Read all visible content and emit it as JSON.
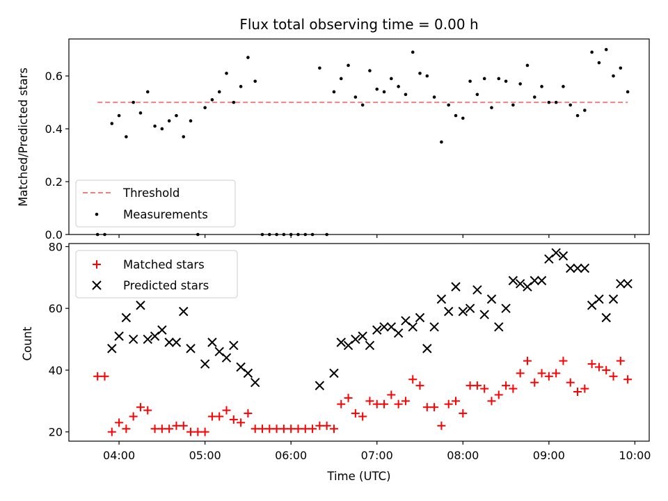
{
  "chart_data": [
    {
      "type": "scatter",
      "title": "Flux total observing time = 0.00 h",
      "xlabel": "",
      "ylabel": "Matched/Predicted stars",
      "xlim": [
        "03:25",
        "10:10"
      ],
      "ylim": [
        0,
        0.74
      ],
      "yticks": [
        "0.0",
        "0.2",
        "0.4",
        "0.6"
      ],
      "grid": false,
      "legend": {
        "placement": "lower-left",
        "entries": [
          "Threshold",
          "Measurements"
        ]
      },
      "threshold": {
        "name": "Threshold",
        "value": 0.5,
        "x_range": [
          "03:45",
          "09:55"
        ],
        "color": "#f08080",
        "style": "dashed"
      },
      "series": [
        {
          "name": "Measurements",
          "marker": "dot",
          "color": "#000000",
          "points": [
            [
              "03:45",
              0.0
            ],
            [
              "03:50",
              0.0
            ],
            [
              "03:55",
              0.42
            ],
            [
              "04:00",
              0.45
            ],
            [
              "04:05",
              0.37
            ],
            [
              "04:10",
              0.5
            ],
            [
              "04:15",
              0.46
            ],
            [
              "04:20",
              0.54
            ],
            [
              "04:25",
              0.41
            ],
            [
              "04:30",
              0.4
            ],
            [
              "04:35",
              0.43
            ],
            [
              "04:40",
              0.45
            ],
            [
              "04:45",
              0.37
            ],
            [
              "04:50",
              0.43
            ],
            [
              "04:55",
              0.0
            ],
            [
              "05:00",
              0.48
            ],
            [
              "05:05",
              0.51
            ],
            [
              "05:10",
              0.54
            ],
            [
              "05:15",
              0.61
            ],
            [
              "05:20",
              0.5
            ],
            [
              "05:25",
              0.56
            ],
            [
              "05:30",
              0.67
            ],
            [
              "05:35",
              0.58
            ],
            [
              "05:40",
              0.0
            ],
            [
              "05:45",
              0.0
            ],
            [
              "05:50",
              0.0
            ],
            [
              "05:55",
              0.0
            ],
            [
              "06:00",
              0.0
            ],
            [
              "06:05",
              0.0
            ],
            [
              "06:10",
              0.0
            ],
            [
              "06:15",
              0.0
            ],
            [
              "06:20",
              0.63
            ],
            [
              "06:25",
              0.0
            ],
            [
              "06:30",
              0.54
            ],
            [
              "06:35",
              0.59
            ],
            [
              "06:40",
              0.64
            ],
            [
              "06:45",
              0.52
            ],
            [
              "06:50",
              0.49
            ],
            [
              "06:55",
              0.62
            ],
            [
              "07:00",
              0.55
            ],
            [
              "07:05",
              0.54
            ],
            [
              "07:10",
              0.59
            ],
            [
              "07:15",
              0.56
            ],
            [
              "07:20",
              0.53
            ],
            [
              "07:25",
              0.69
            ],
            [
              "07:30",
              0.61
            ],
            [
              "07:35",
              0.6
            ],
            [
              "07:40",
              0.52
            ],
            [
              "07:45",
              0.35
            ],
            [
              "07:50",
              0.49
            ],
            [
              "07:55",
              0.45
            ],
            [
              "08:00",
              0.44
            ],
            [
              "08:05",
              0.58
            ],
            [
              "08:10",
              0.53
            ],
            [
              "08:15",
              0.59
            ],
            [
              "08:20",
              0.48
            ],
            [
              "08:25",
              0.59
            ],
            [
              "08:30",
              0.58
            ],
            [
              "08:35",
              0.49
            ],
            [
              "08:40",
              0.57
            ],
            [
              "08:45",
              0.64
            ],
            [
              "08:50",
              0.52
            ],
            [
              "08:55",
              0.56
            ],
            [
              "09:00",
              0.5
            ],
            [
              "09:05",
              0.5
            ],
            [
              "09:10",
              0.56
            ],
            [
              "09:15",
              0.49
            ],
            [
              "09:20",
              0.45
            ],
            [
              "09:25",
              0.47
            ],
            [
              "09:30",
              0.69
            ],
            [
              "09:35",
              0.65
            ],
            [
              "09:40",
              0.7
            ],
            [
              "09:45",
              0.6
            ],
            [
              "09:50",
              0.63
            ],
            [
              "09:55",
              0.54
            ]
          ]
        }
      ]
    },
    {
      "type": "scatter",
      "title": "",
      "xlabel": "Time (UTC)",
      "ylabel": "Count",
      "xlim": [
        "03:25",
        "10:10"
      ],
      "xticks": [
        "04:00",
        "05:00",
        "06:00",
        "07:00",
        "08:00",
        "09:00",
        "10:00"
      ],
      "ylim": [
        17,
        81
      ],
      "yticks": [
        "20",
        "40",
        "60",
        "80"
      ],
      "grid": false,
      "legend": {
        "placement": "top-left",
        "entries": [
          "Matched stars",
          "Predicted stars"
        ]
      },
      "series": [
        {
          "name": "Matched stars",
          "marker": "plus",
          "color": "#ff0000",
          "points": [
            [
              "03:45",
              38
            ],
            [
              "03:50",
              38
            ],
            [
              "03:55",
              20
            ],
            [
              "04:00",
              23
            ],
            [
              "04:05",
              21
            ],
            [
              "04:10",
              25
            ],
            [
              "04:15",
              28
            ],
            [
              "04:20",
              27
            ],
            [
              "04:25",
              21
            ],
            [
              "04:30",
              21
            ],
            [
              "04:35",
              21
            ],
            [
              "04:40",
              22
            ],
            [
              "04:45",
              22
            ],
            [
              "04:50",
              20
            ],
            [
              "04:55",
              20
            ],
            [
              "05:00",
              20
            ],
            [
              "05:05",
              25
            ],
            [
              "05:10",
              25
            ],
            [
              "05:15",
              27
            ],
            [
              "05:20",
              24
            ],
            [
              "05:25",
              23
            ],
            [
              "05:30",
              26
            ],
            [
              "05:35",
              21
            ],
            [
              "05:40",
              21
            ],
            [
              "05:45",
              21
            ],
            [
              "05:50",
              21
            ],
            [
              "05:55",
              21
            ],
            [
              "06:00",
              21
            ],
            [
              "06:05",
              21
            ],
            [
              "06:10",
              21
            ],
            [
              "06:15",
              21
            ],
            [
              "06:20",
              22
            ],
            [
              "06:25",
              22
            ],
            [
              "06:30",
              21
            ],
            [
              "06:35",
              29
            ],
            [
              "06:40",
              31
            ],
            [
              "06:45",
              26
            ],
            [
              "06:50",
              25
            ],
            [
              "06:55",
              30
            ],
            [
              "07:00",
              29
            ],
            [
              "07:05",
              29
            ],
            [
              "07:10",
              32
            ],
            [
              "07:15",
              29
            ],
            [
              "07:20",
              30
            ],
            [
              "07:25",
              37
            ],
            [
              "07:30",
              35
            ],
            [
              "07:35",
              28
            ],
            [
              "07:40",
              28
            ],
            [
              "07:45",
              22
            ],
            [
              "07:50",
              29
            ],
            [
              "07:55",
              30
            ],
            [
              "08:00",
              26
            ],
            [
              "08:05",
              35
            ],
            [
              "08:10",
              35
            ],
            [
              "08:15",
              34
            ],
            [
              "08:20",
              30
            ],
            [
              "08:25",
              32
            ],
            [
              "08:30",
              35
            ],
            [
              "08:35",
              34
            ],
            [
              "08:40",
              39
            ],
            [
              "08:45",
              43
            ],
            [
              "08:50",
              36
            ],
            [
              "08:55",
              39
            ],
            [
              "09:00",
              38
            ],
            [
              "09:05",
              39
            ],
            [
              "09:10",
              43
            ],
            [
              "09:15",
              36
            ],
            [
              "09:20",
              33
            ],
            [
              "09:25",
              34
            ],
            [
              "09:30",
              42
            ],
            [
              "09:35",
              41
            ],
            [
              "09:40",
              40
            ],
            [
              "09:45",
              38
            ],
            [
              "09:50",
              43
            ],
            [
              "09:55",
              37
            ]
          ]
        },
        {
          "name": "Predicted stars",
          "marker": "x",
          "color": "#000000",
          "points": [
            [
              "03:55",
              47
            ],
            [
              "04:00",
              51
            ],
            [
              "04:05",
              57
            ],
            [
              "04:10",
              50
            ],
            [
              "04:15",
              61
            ],
            [
              "04:20",
              50
            ],
            [
              "04:25",
              51
            ],
            [
              "04:30",
              53
            ],
            [
              "04:35",
              49
            ],
            [
              "04:40",
              49
            ],
            [
              "04:45",
              59
            ],
            [
              "04:50",
              47
            ],
            [
              "05:00",
              42
            ],
            [
              "05:05",
              49
            ],
            [
              "05:10",
              46
            ],
            [
              "05:15",
              44
            ],
            [
              "05:20",
              48
            ],
            [
              "05:25",
              41
            ],
            [
              "05:30",
              39
            ],
            [
              "05:35",
              36
            ],
            [
              "06:20",
              35
            ],
            [
              "06:30",
              39
            ],
            [
              "06:35",
              49
            ],
            [
              "06:40",
              48
            ],
            [
              "06:45",
              50
            ],
            [
              "06:50",
              51
            ],
            [
              "06:55",
              48
            ],
            [
              "07:00",
              53
            ],
            [
              "07:05",
              54
            ],
            [
              "07:10",
              54
            ],
            [
              "07:15",
              52
            ],
            [
              "07:20",
              56
            ],
            [
              "07:25",
              54
            ],
            [
              "07:30",
              57
            ],
            [
              "07:35",
              47
            ],
            [
              "07:40",
              54
            ],
            [
              "07:45",
              63
            ],
            [
              "07:50",
              59
            ],
            [
              "07:55",
              67
            ],
            [
              "08:00",
              59
            ],
            [
              "08:05",
              60
            ],
            [
              "08:10",
              66
            ],
            [
              "08:15",
              58
            ],
            [
              "08:20",
              63
            ],
            [
              "08:25",
              54
            ],
            [
              "08:30",
              60
            ],
            [
              "08:35",
              69
            ],
            [
              "08:40",
              68
            ],
            [
              "08:45",
              67
            ],
            [
              "08:50",
              69
            ],
            [
              "08:55",
              69
            ],
            [
              "09:00",
              76
            ],
            [
              "09:05",
              78
            ],
            [
              "09:10",
              77
            ],
            [
              "09:15",
              73
            ],
            [
              "09:20",
              73
            ],
            [
              "09:25",
              73
            ],
            [
              "09:30",
              61
            ],
            [
              "09:35",
              63
            ],
            [
              "09:40",
              57
            ],
            [
              "09:45",
              63
            ],
            [
              "09:50",
              68
            ],
            [
              "09:55",
              68
            ]
          ]
        }
      ]
    }
  ]
}
